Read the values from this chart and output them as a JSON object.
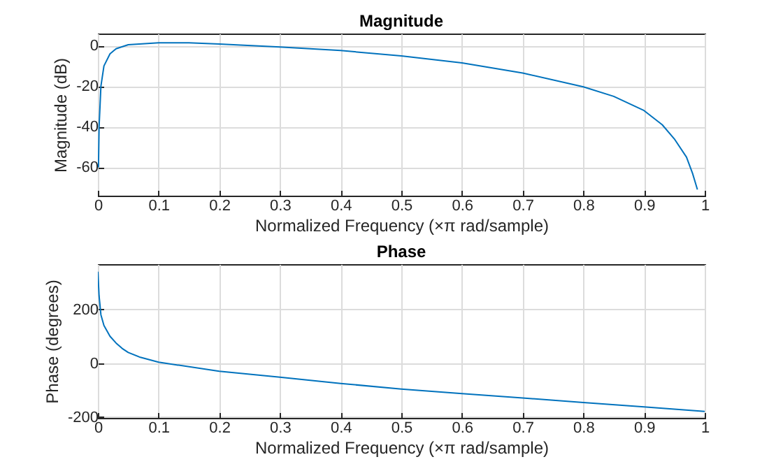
{
  "chart_data": [
    {
      "type": "line",
      "title": "Magnitude",
      "xlabel": "Normalized Frequency  (×π rad/sample)",
      "ylabel": "Magnitude (dB)",
      "grid": true,
      "xlim": [
        0,
        1
      ],
      "xticks": [
        0,
        0.1,
        0.2,
        0.3,
        0.4,
        0.5,
        0.6,
        0.7,
        0.8,
        0.9,
        1
      ],
      "ylim": [
        -74,
        6
      ],
      "yticks": [
        -60,
        -40,
        -20,
        0
      ],
      "series": [
        {
          "color": "#0072bd",
          "x": [
            0.001,
            0.002,
            0.005,
            0.01,
            0.02,
            0.03,
            0.05,
            0.1,
            0.15,
            0.2,
            0.3,
            0.4,
            0.5,
            0.6,
            0.7,
            0.8,
            0.85,
            0.9,
            0.93,
            0.95,
            0.97,
            0.98,
            0.988
          ],
          "values": [
            -60,
            -40,
            -20,
            -10,
            -4,
            -1.5,
            0.5,
            1.4,
            1.4,
            0.8,
            -0.6,
            -2.4,
            -5,
            -8.5,
            -13.5,
            -20.3,
            -25,
            -32,
            -39,
            -46,
            -55,
            -63,
            -71
          ]
        }
      ]
    },
    {
      "type": "line",
      "title": "Phase",
      "xlabel": "Normalized Frequency  (×π rad/sample)",
      "ylabel": "Phase (degrees)",
      "grid": true,
      "xlim": [
        0,
        1
      ],
      "xticks": [
        0,
        0.1,
        0.2,
        0.3,
        0.4,
        0.5,
        0.6,
        0.7,
        0.8,
        0.9,
        1
      ],
      "ylim": [
        -203,
        368
      ],
      "yticks": [
        -200,
        0,
        200
      ],
      "series": [
        {
          "color": "#0072bd",
          "x": [
            0,
            0.002,
            0.005,
            0.01,
            0.02,
            0.03,
            0.04,
            0.05,
            0.07,
            0.1,
            0.2,
            0.3,
            0.4,
            0.5,
            0.6,
            0.7,
            0.8,
            0.9,
            1
          ],
          "values": [
            340,
            250,
            180,
            140,
            100,
            75,
            55,
            40,
            22,
            4,
            -30,
            -52,
            -75,
            -96,
            -113,
            -129,
            -146,
            -162,
            -179
          ]
        }
      ]
    }
  ]
}
